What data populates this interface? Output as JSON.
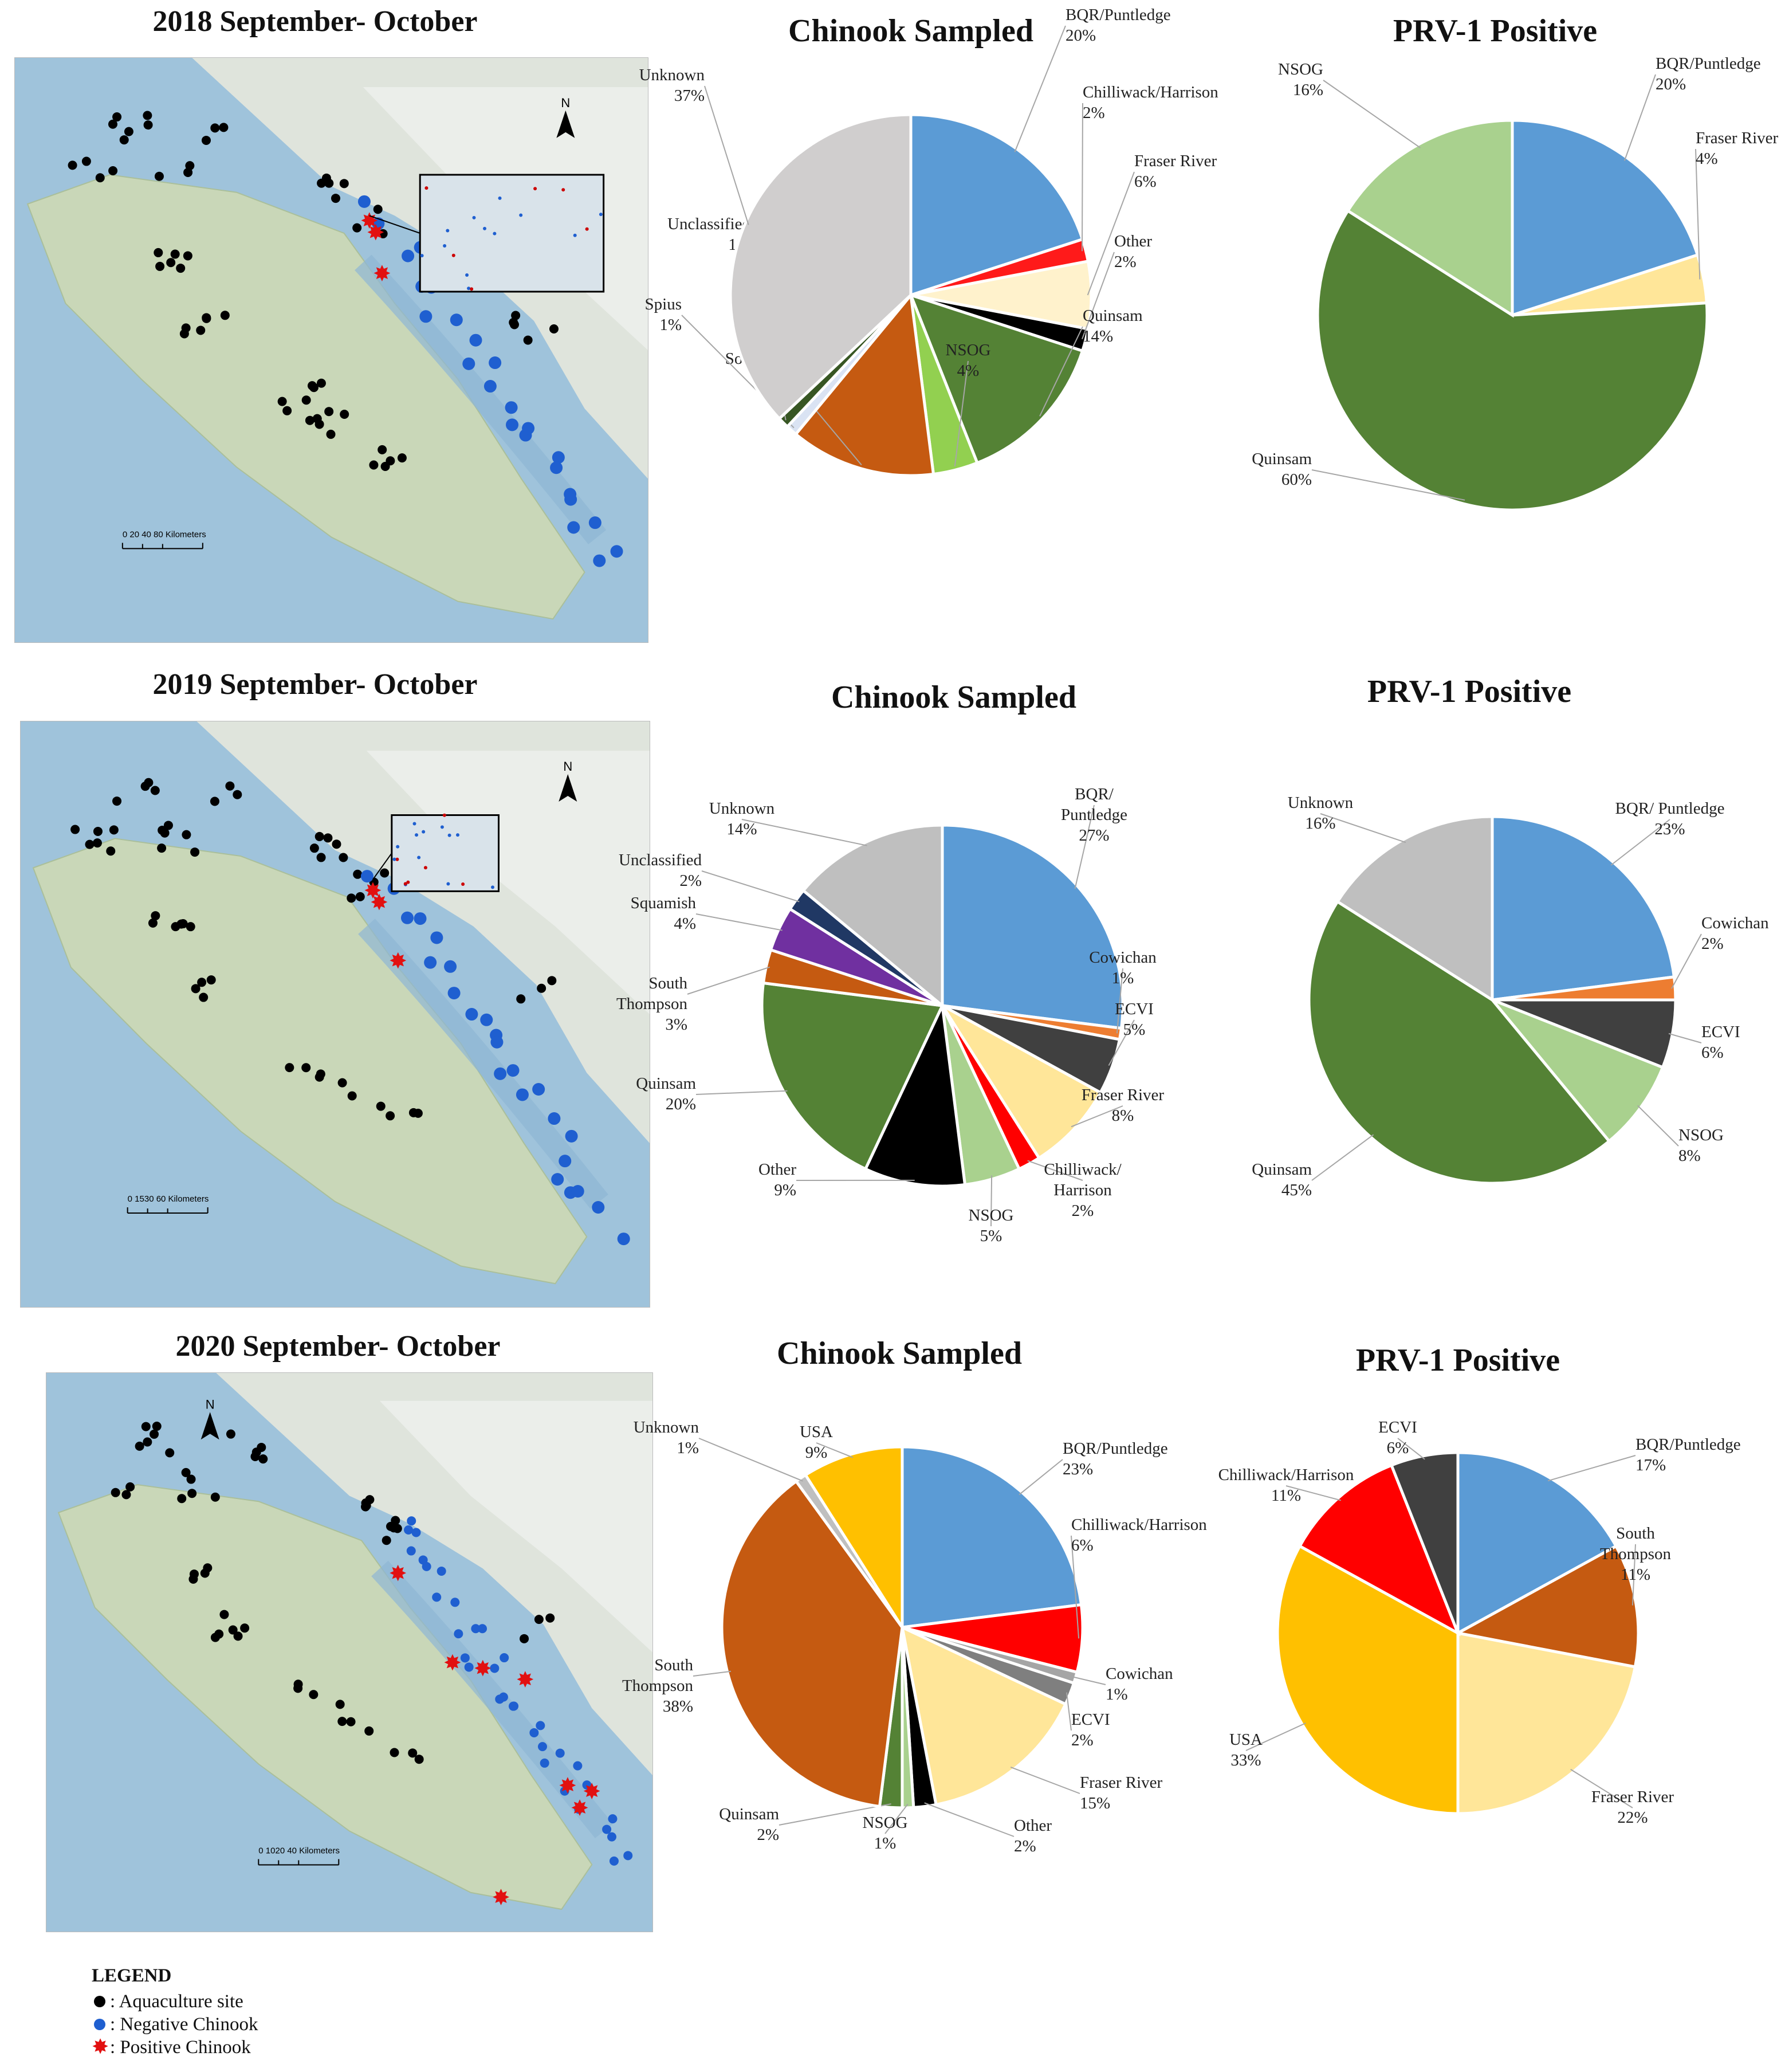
{
  "rows": [
    {
      "title": "2018 September- October",
      "map": {
        "scale_text": "0   20  40      80 Kilometers",
        "north_label": "N"
      },
      "charts": [
        {
          "title": "Chinook Sampled",
          "chart_data": {
            "type": "pie",
            "slices": [
              {
                "name": "BQR/Puntledge",
                "value": 20,
                "color": "#5b9bd5"
              },
              {
                "name": "Chilliwack/Harrison",
                "value": 2,
                "color": "#ff1a1a"
              },
              {
                "name": "Fraser River",
                "value": 6,
                "color": "#fff2cc"
              },
              {
                "name": "Other",
                "value": 2,
                "color": "#000000"
              },
              {
                "name": "Quinsam",
                "value": 14,
                "color": "#548235"
              },
              {
                "name": "NSOG",
                "value": 4,
                "color": "#92d050"
              },
              {
                "name": "South Thompson",
                "value": 13,
                "color": "#c55a11"
              },
              {
                "name": "Spius",
                "value": 1,
                "color": "#dae3f3"
              },
              {
                "name": "Unclassified",
                "value": 1,
                "color": "#375623"
              },
              {
                "name": "Unknown",
                "value": 37,
                "color": "#d0cece"
              }
            ],
            "labels": [
              {
                "name": "BQR/Puntledge",
                "pct": "20%"
              },
              {
                "name": "Chilliwack/Harrison",
                "pct": "2%"
              },
              {
                "name": "Fraser River",
                "pct": "6%"
              },
              {
                "name": "Other",
                "pct": "2%"
              },
              {
                "name": "Quinsam",
                "pct": "14%"
              },
              {
                "name": "NSOG",
                "pct": "4%"
              },
              {
                "name": "South Thompson",
                "pct": "13%"
              },
              {
                "name": "Spius",
                "pct": "1%"
              },
              {
                "name": "Unclassified",
                "pct": "1%"
              },
              {
                "name": "Unknown",
                "pct": "37%"
              }
            ]
          }
        },
        {
          "title": "PRV-1 Positive",
          "chart_data": {
            "type": "pie",
            "slices": [
              {
                "name": "BQR/Puntledge",
                "value": 20,
                "color": "#5b9bd5"
              },
              {
                "name": "Fraser River",
                "value": 4,
                "color": "#ffe699"
              },
              {
                "name": "Quinsam",
                "value": 60,
                "color": "#548235"
              },
              {
                "name": "NSOG",
                "value": 16,
                "color": "#a9d18e"
              }
            ],
            "labels": [
              {
                "name": "BQR/Puntledge",
                "pct": "20%"
              },
              {
                "name": "Fraser River",
                "pct": "4%"
              },
              {
                "name": "Quinsam",
                "pct": "60%"
              },
              {
                "name": "NSOG",
                "pct": "16%"
              }
            ]
          }
        }
      ]
    },
    {
      "title": "2019 September- October",
      "map": {
        "scale_text": "0 1530   60 Kilometers",
        "north_label": "N"
      },
      "charts": [
        {
          "title": "Chinook Sampled",
          "chart_data": {
            "type": "pie",
            "slices": [
              {
                "name": "BQR/Puntledge",
                "value": 27,
                "color": "#5b9bd5"
              },
              {
                "name": "Cowichan",
                "value": 1,
                "color": "#ed7d31"
              },
              {
                "name": "ECVI",
                "value": 5,
                "color": "#404040"
              },
              {
                "name": "Fraser River",
                "value": 8,
                "color": "#ffe699"
              },
              {
                "name": "Chilliwack/Harrison",
                "value": 2,
                "color": "#ff0000"
              },
              {
                "name": "NSOG",
                "value": 5,
                "color": "#a9d18e"
              },
              {
                "name": "Other",
                "value": 9,
                "color": "#000000"
              },
              {
                "name": "Quinsam",
                "value": 20,
                "color": "#548235"
              },
              {
                "name": "South Thompson",
                "value": 3,
                "color": "#c55a11"
              },
              {
                "name": "Squamish",
                "value": 4,
                "color": "#7030a0"
              },
              {
                "name": "Unclassified",
                "value": 2,
                "color": "#203864"
              },
              {
                "name": "Unknown",
                "value": 14,
                "color": "#bfbfbf"
              }
            ],
            "labels": [
              {
                "name": "BQR/\nPuntledge",
                "pct": "27%"
              },
              {
                "name": "Cowichan",
                "pct": "1%"
              },
              {
                "name": "ECVI",
                "pct": "5%"
              },
              {
                "name": "Fraser River",
                "pct": "8%"
              },
              {
                "name": "Chilliwack/\nHarrison",
                "pct": "2%"
              },
              {
                "name": "NSOG",
                "pct": "5%"
              },
              {
                "name": "Other",
                "pct": "9%"
              },
              {
                "name": "Quinsam",
                "pct": "20%"
              },
              {
                "name": "South\nThompson",
                "pct": "3%"
              },
              {
                "name": "Squamish",
                "pct": "4%"
              },
              {
                "name": "Unclassified",
                "pct": "2%"
              },
              {
                "name": "Unknown",
                "pct": "14%"
              }
            ]
          }
        },
        {
          "title": "PRV-1 Positive",
          "chart_data": {
            "type": "pie",
            "slices": [
              {
                "name": "BQR/ Puntledge",
                "value": 23,
                "color": "#5b9bd5"
              },
              {
                "name": "Cowichan",
                "value": 2,
                "color": "#ed7d31"
              },
              {
                "name": "ECVI",
                "value": 6,
                "color": "#404040"
              },
              {
                "name": "NSOG",
                "value": 8,
                "color": "#a9d18e"
              },
              {
                "name": "Quinsam",
                "value": 45,
                "color": "#548235"
              },
              {
                "name": "Unknown",
                "value": 16,
                "color": "#bfbfbf"
              }
            ],
            "labels": [
              {
                "name": "BQR/ Puntledge",
                "pct": "23%"
              },
              {
                "name": "Cowichan",
                "pct": "2%"
              },
              {
                "name": "ECVI",
                "pct": "6%"
              },
              {
                "name": "NSOG",
                "pct": "8%"
              },
              {
                "name": "Quinsam",
                "pct": "45%"
              },
              {
                "name": "Unknown",
                "pct": "16%"
              }
            ]
          }
        }
      ]
    },
    {
      "title": "2020 September- October",
      "map": {
        "scale_text": "0 1020   40 Kilometers",
        "north_label": "N"
      },
      "charts": [
        {
          "title": "Chinook Sampled",
          "chart_data": {
            "type": "pie",
            "slices": [
              {
                "name": "BQR/Puntledge",
                "value": 23,
                "color": "#5b9bd5"
              },
              {
                "name": "Chilliwack/Harrison",
                "value": 6,
                "color": "#ff0000"
              },
              {
                "name": "Cowichan",
                "value": 1,
                "color": "#a5a5a5"
              },
              {
                "name": "ECVI",
                "value": 2,
                "color": "#7f7f7f"
              },
              {
                "name": "Fraser River",
                "value": 15,
                "color": "#ffe699"
              },
              {
                "name": "Other",
                "value": 2,
                "color": "#000000"
              },
              {
                "name": "NSOG",
                "value": 1,
                "color": "#a9d18e"
              },
              {
                "name": "Quinsam",
                "value": 2,
                "color": "#548235"
              },
              {
                "name": "South Thompson",
                "value": 38,
                "color": "#c55a11"
              },
              {
                "name": "Unknown",
                "value": 1,
                "color": "#bfbfbf"
              },
              {
                "name": "USA",
                "value": 9,
                "color": "#ffc000"
              }
            ],
            "labels": [
              {
                "name": "BQR/Puntledge",
                "pct": "23%"
              },
              {
                "name": "Chilliwack/Harrison",
                "pct": "6%"
              },
              {
                "name": "Cowichan",
                "pct": "1%"
              },
              {
                "name": "ECVI",
                "pct": "2%"
              },
              {
                "name": "Fraser River",
                "pct": "15%"
              },
              {
                "name": "Other",
                "pct": "2%"
              },
              {
                "name": "NSOG",
                "pct": "1%"
              },
              {
                "name": "Quinsam",
                "pct": "2%"
              },
              {
                "name": "South\nThompson",
                "pct": "38%"
              },
              {
                "name": "Unknown",
                "pct": "1%"
              },
              {
                "name": "USA",
                "pct": "9%"
              }
            ]
          }
        },
        {
          "title": "PRV-1 Positive",
          "chart_data": {
            "type": "pie",
            "slices": [
              {
                "name": "BQR/Puntledge",
                "value": 17,
                "color": "#5b9bd5"
              },
              {
                "name": "South Thompson",
                "value": 11,
                "color": "#c55a11"
              },
              {
                "name": "Fraser River",
                "value": 22,
                "color": "#ffe699"
              },
              {
                "name": "USA",
                "value": 33,
                "color": "#ffc000"
              },
              {
                "name": "Chilliwack/Harrison",
                "value": 11,
                "color": "#ff0000"
              },
              {
                "name": "ECVI",
                "value": 6,
                "color": "#404040"
              }
            ],
            "labels": [
              {
                "name": "BQR/Puntledge",
                "pct": "17%"
              },
              {
                "name": "South\nThompson",
                "pct": "11%"
              },
              {
                "name": "Fraser River",
                "pct": "22%"
              },
              {
                "name": "USA",
                "pct": "33%"
              },
              {
                "name": "Chilliwack/Harrison",
                "pct": "11%"
              },
              {
                "name": "ECVI",
                "pct": "6%"
              }
            ]
          }
        }
      ]
    }
  ],
  "legend": {
    "title": "LEGEND",
    "items": [
      {
        "label": ": Aquaculture site",
        "marker": "black-dot"
      },
      {
        "label": ": Negative Chinook",
        "marker": "blue-dot"
      },
      {
        "label": ": Positive Chinook",
        "marker": "red-star"
      }
    ]
  }
}
